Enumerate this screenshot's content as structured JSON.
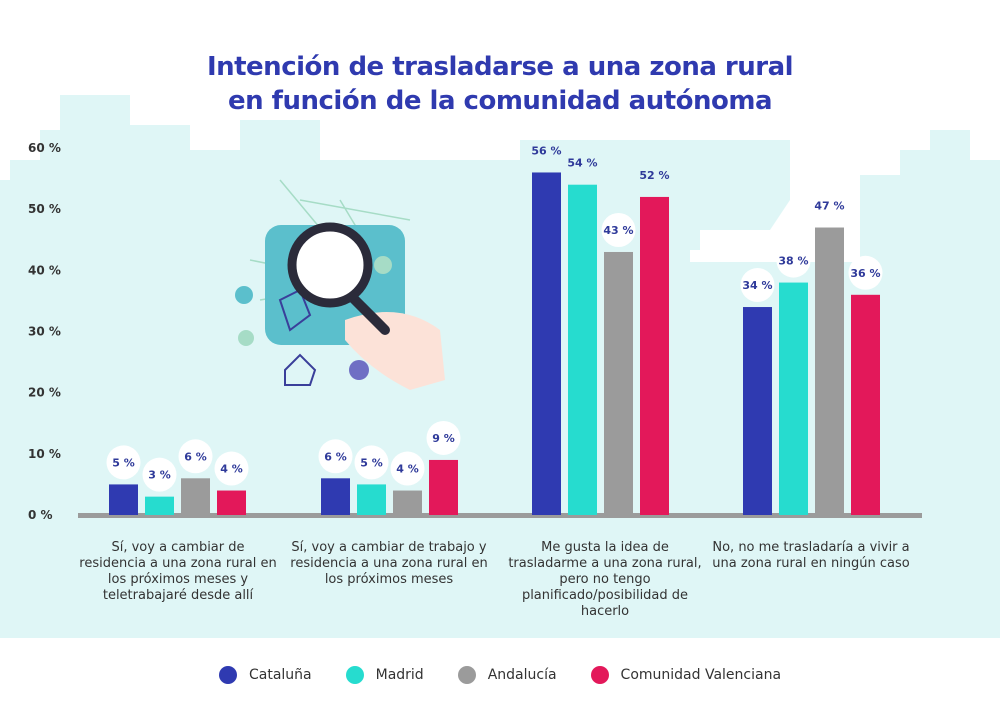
{
  "title_line1": "Intención de trasladarse a una zona rural",
  "title_line2": "en función de la comunidad autónoma",
  "chart_data": {
    "type": "bar",
    "title": "Intención de trasladarse a una zona rural en función de la comunidad autónoma",
    "categories": [
      "Sí, voy a cambiar de residencia a una zona rural en los próximos meses y teletrabajaré desde allí",
      "Sí, voy a cambiar de trabajo y residencia a una zona rural en los próximos meses",
      "Me gusta la idea de trasladarme a una zona rural, pero no tengo planificado/posibilidad de hacerlo",
      "No, no me trasladaría a vivir a una zona rural en ningún caso"
    ],
    "series": [
      {
        "name": "Cataluña",
        "color": "#2f3ab1",
        "values": [
          5,
          6,
          56,
          34
        ]
      },
      {
        "name": "Madrid",
        "color": "#26dccf",
        "values": [
          3,
          5,
          54,
          38
        ]
      },
      {
        "name": "Andalucía",
        "color": "#9b9b9b",
        "values": [
          6,
          4,
          43,
          47
        ]
      },
      {
        "name": "Comunidad Valenciana",
        "color": "#e3185a",
        "values": [
          4,
          9,
          52,
          36
        ]
      }
    ],
    "ylim": [
      0,
      60
    ],
    "yticks": [
      "0 %",
      "10 %",
      "20 %",
      "30 %",
      "40 %",
      "50 %",
      "60 %"
    ],
    "value_suffix": " %",
    "legend": "bottom",
    "grid": false
  }
}
